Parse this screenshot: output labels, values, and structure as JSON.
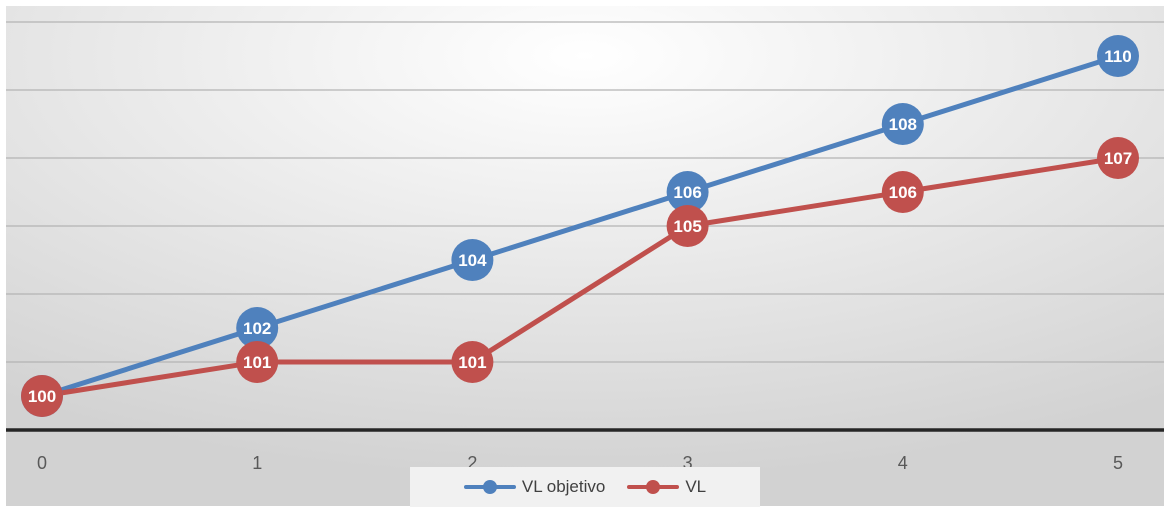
{
  "chart_data": {
    "type": "line",
    "categories": [
      "0",
      "1",
      "2",
      "3",
      "4",
      "5"
    ],
    "x": [
      0,
      1,
      2,
      3,
      4,
      5
    ],
    "ylim": [
      99,
      111
    ],
    "grid": true,
    "legend_position": "bottom",
    "series": [
      {
        "name": "VL objetivo",
        "color": "#4f81bd",
        "values": [
          100,
          102,
          104,
          106,
          108,
          110
        ],
        "labels": [
          "100",
          "102",
          "104",
          "106",
          "108",
          "110"
        ]
      },
      {
        "name": "VL",
        "color": "#c0504d",
        "values": [
          100,
          101,
          101,
          105,
          106,
          107
        ],
        "labels": [
          "100",
          "101",
          "101",
          "105",
          "106",
          "107"
        ]
      }
    ]
  }
}
